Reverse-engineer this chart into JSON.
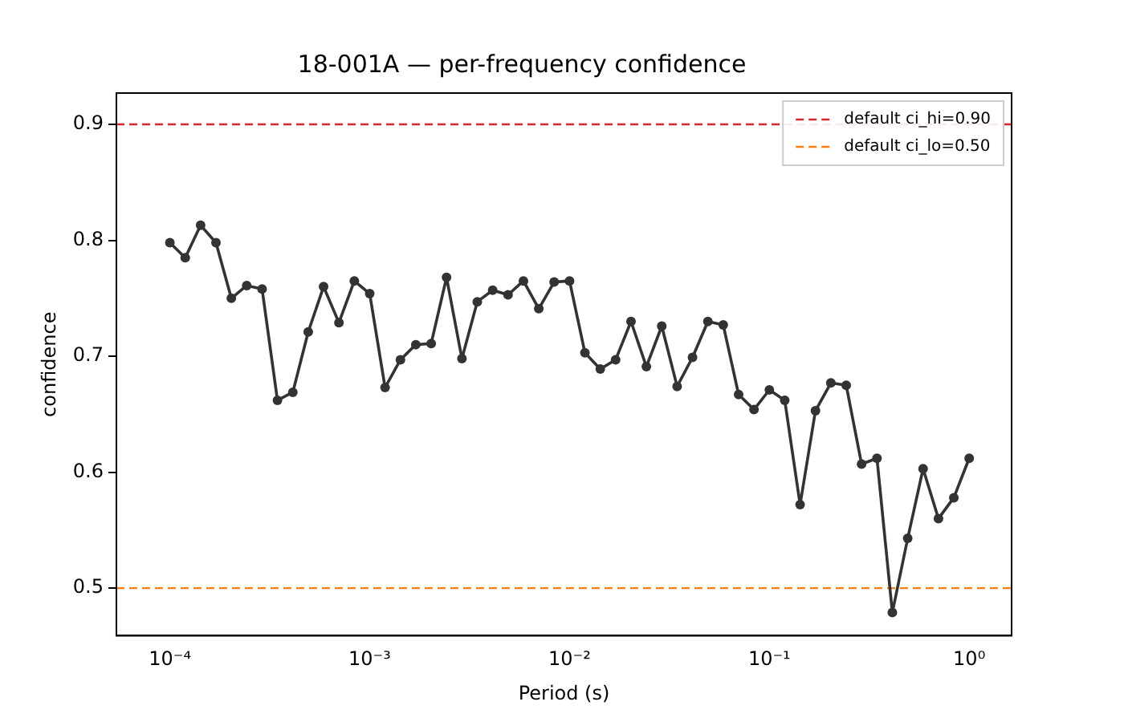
{
  "chart_data": {
    "type": "line",
    "title": "18-001A — per-frequency confidence",
    "xlabel": "Period (s)",
    "ylabel": "confidence",
    "log": "x",
    "x": [
      0.0001,
      0.0001194,
      0.0001425,
      0.0001701,
      0.0002031,
      0.0002424,
      0.0002894,
      0.0003455,
      0.0004125,
      0.0004924,
      0.0005878,
      0.0007017,
      0.0008377,
      0.001,
      0.001194,
      0.001425,
      0.001701,
      0.002031,
      0.002424,
      0.002894,
      0.003455,
      0.004125,
      0.004924,
      0.005878,
      0.007017,
      0.008377,
      0.01,
      0.01194,
      0.01425,
      0.01701,
      0.02031,
      0.02424,
      0.02894,
      0.03455,
      0.04125,
      0.04924,
      0.05878,
      0.07017,
      0.08377,
      0.1,
      0.1194,
      0.1425,
      0.1701,
      0.2031,
      0.2424,
      0.2894,
      0.3455,
      0.4125,
      0.4924,
      0.5878,
      0.7017,
      0.8377,
      1
    ],
    "series": [
      {
        "color": "#333333",
        "values": [
          0.798,
          0.785,
          0.813,
          0.798,
          0.75,
          0.761,
          0.758,
          0.662,
          0.669,
          0.721,
          0.76,
          0.729,
          0.765,
          0.754,
          0.673,
          0.697,
          0.71,
          0.711,
          0.768,
          0.698,
          0.747,
          0.757,
          0.753,
          0.765,
          0.741,
          0.764,
          0.765,
          0.703,
          0.689,
          0.697,
          0.73,
          0.691,
          0.726,
          0.674,
          0.699,
          0.73,
          0.727,
          0.667,
          0.654,
          0.671,
          0.662,
          0.572,
          0.653,
          0.677,
          0.675,
          0.607,
          0.612,
          0.479,
          0.543,
          0.603,
          0.56,
          0.578,
          0.612
        ]
      }
    ],
    "xlim": [
      5.4e-05,
      1.63
    ],
    "ylim": [
      0.459,
      0.927
    ],
    "xticks": [
      {
        "value": 0.0001,
        "label": "10⁻⁴"
      },
      {
        "value": 0.001,
        "label": "10⁻³"
      },
      {
        "value": 0.01,
        "label": "10⁻²"
      },
      {
        "value": 0.1,
        "label": "10⁻¹"
      },
      {
        "value": 1,
        "label": "10⁰"
      }
    ],
    "yticks": [
      0.5,
      0.6,
      0.7,
      0.8,
      0.9
    ],
    "ref_lines": [
      {
        "axis": "y",
        "value": 0.9,
        "label": "default ci_hi=0.90",
        "color": "#d62728",
        "line_style": "dashed"
      },
      {
        "axis": "y",
        "value": 0.5,
        "label": "default ci_lo=0.50",
        "color": "#ff7f0e",
        "line_style": "dashed"
      }
    ],
    "legend": "top right",
    "marker": "circle",
    "line_style": "solid",
    "grid": false
  }
}
